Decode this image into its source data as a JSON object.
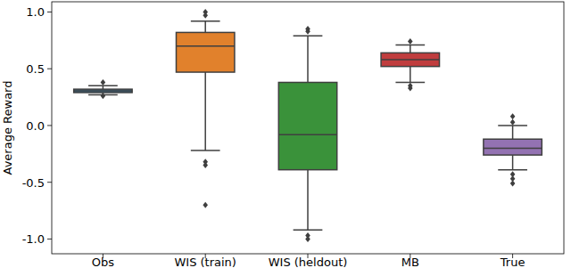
{
  "chart_data": {
    "type": "box",
    "y_label": "Average Reward",
    "categories": [
      "Obs",
      "WIS (train)",
      "WIS (heldout)",
      "MB",
      "True"
    ],
    "colors": [
      "#3274a1",
      "#e1812c",
      "#3a923a",
      "#c03d3e",
      "#9372b2"
    ],
    "min": [
      0.27,
      -0.22,
      -0.92,
      0.38,
      -0.39
    ],
    "q1": [
      0.29,
      0.47,
      -0.39,
      0.52,
      -0.26
    ],
    "median": [
      0.305,
      0.7,
      -0.08,
      0.58,
      -0.2
    ],
    "q3": [
      0.32,
      0.82,
      0.38,
      0.64,
      -0.12
    ],
    "max": [
      0.35,
      0.92,
      0.79,
      0.71,
      0.0
    ],
    "outliers": [
      [
        0.38,
        0.26
      ],
      [
        1.0,
        0.97,
        -0.32,
        -0.35,
        -0.7
      ],
      [
        0.85,
        0.83,
        -0.97,
        -1.0
      ],
      [
        0.74,
        0.35,
        0.33
      ],
      [
        0.08,
        0.03,
        -0.43,
        -0.47,
        -0.51
      ]
    ],
    "ylim": [
      -1.13,
      1.09
    ],
    "yticks": [
      {
        "value": -1,
        "label": "-1.0"
      },
      -0.5,
      {
        "value": 0,
        "label": "0.0"
      },
      0.5,
      {
        "value": 1,
        "label": "1.0"
      }
    ],
    "grid": false
  }
}
